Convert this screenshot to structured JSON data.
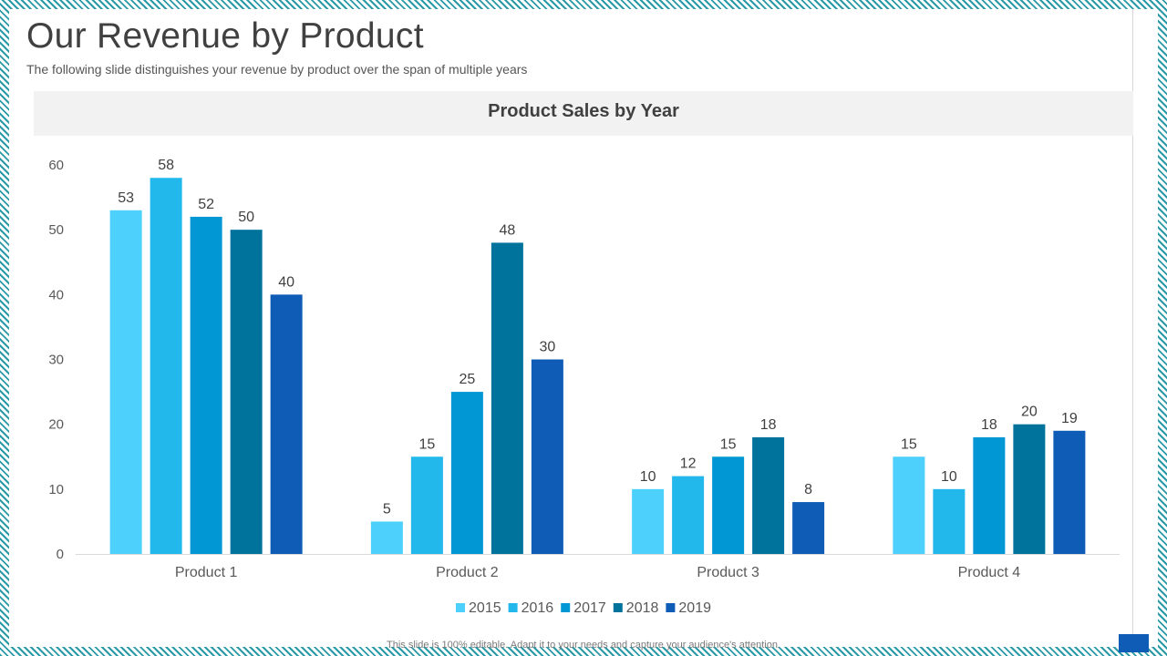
{
  "slide": {
    "title": "Our Revenue by Product",
    "subtitle": "The following slide distinguishes your revenue by product over the span of multiple years",
    "footer": "This slide is 100% editable. Adapt it to your needs and capture your audience's attention."
  },
  "chart_data": {
    "type": "bar",
    "title": "Product Sales by Year",
    "categories": [
      "Product 1",
      "Product 2",
      "Product 3",
      "Product 4"
    ],
    "series": [
      {
        "name": "2015",
        "values": [
          53,
          5,
          10,
          15
        ],
        "color": "#4dd0fb"
      },
      {
        "name": "2016",
        "values": [
          58,
          15,
          12,
          10
        ],
        "color": "#22b8ec"
      },
      {
        "name": "2017",
        "values": [
          52,
          25,
          15,
          18
        ],
        "color": "#0097d4"
      },
      {
        "name": "2018",
        "values": [
          50,
          48,
          18,
          20
        ],
        "color": "#00739c"
      },
      {
        "name": "2019",
        "values": [
          40,
          30,
          8,
          19
        ],
        "color": "#0f5cb6"
      }
    ],
    "yticks": [
      "0",
      "10",
      "20",
      "30",
      "40",
      "50",
      "60"
    ],
    "ylim": [
      0,
      60
    ],
    "data_labels": true,
    "legend_position": "bottom",
    "grid": false
  },
  "colors": {
    "frame_accent": "#2a9aa6",
    "text_dark": "#404040",
    "axis_line": "#d9d9d9"
  }
}
